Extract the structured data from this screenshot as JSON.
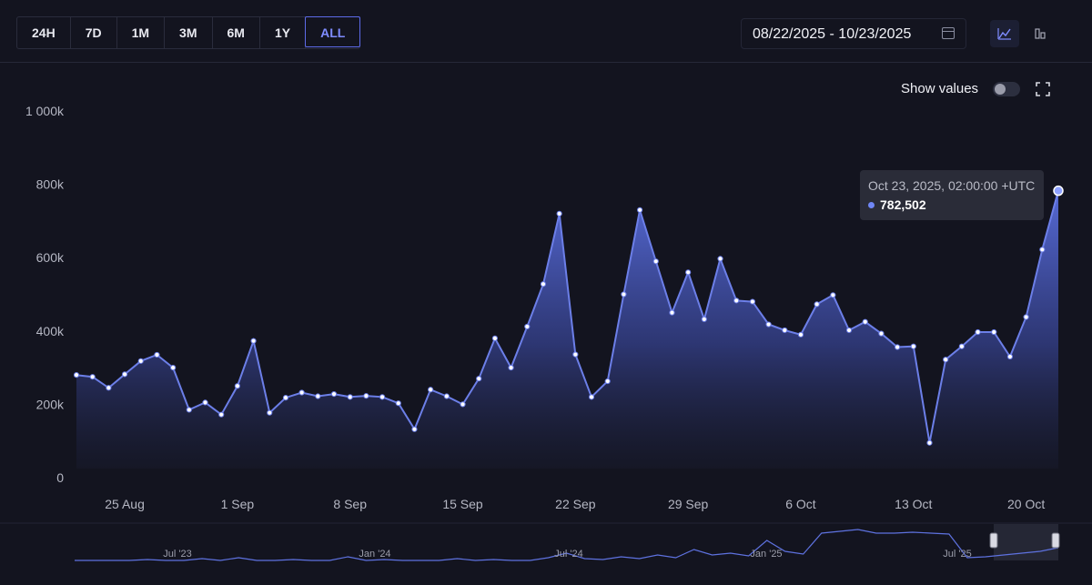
{
  "range_buttons": [
    "24H",
    "7D",
    "1M",
    "3M",
    "6M",
    "1Y",
    "ALL"
  ],
  "active_range": "ALL",
  "date_range": "08/22/2025 - 10/23/2025",
  "show_values_label": "Show values",
  "show_values_on": false,
  "tooltip": {
    "date": "Oct 23, 2025, 02:00:00 +UTC",
    "value": "782,502"
  },
  "colors": {
    "accent": "#6f86f5",
    "line": "#6c7fe8",
    "background": "#13141f"
  },
  "icons": [
    "calendar-icon",
    "line-chart-icon",
    "bar-chart-icon",
    "fullscreen-icon"
  ],
  "chart_data": {
    "type": "area",
    "ylim": [
      0,
      1000000
    ],
    "y_ticks": [
      0,
      200000,
      400000,
      600000,
      800000,
      1000000
    ],
    "y_tick_labels": [
      "0",
      "200k",
      "400k",
      "600k",
      "800k",
      "1 000k"
    ],
    "x_ticks": [
      {
        "day": 3,
        "label": "25 Aug"
      },
      {
        "day": 10,
        "label": "1 Sep"
      },
      {
        "day": 17,
        "label": "8 Sep"
      },
      {
        "day": 24,
        "label": "15 Sep"
      },
      {
        "day": 31,
        "label": "22 Sep"
      },
      {
        "day": 38,
        "label": "29 Sep"
      },
      {
        "day": 45,
        "label": "6 Oct"
      },
      {
        "day": 52,
        "label": "13 Oct"
      },
      {
        "day": 59,
        "label": "20 Oct"
      }
    ],
    "x_start": "2025-08-22",
    "series": [
      {
        "values": [
          280000,
          275000,
          245000,
          282000,
          318000,
          335000,
          300000,
          185000,
          205000,
          172000,
          250000,
          373000,
          177000,
          218000,
          232000,
          222000,
          228000,
          220000,
          223000,
          220000,
          203000,
          132000,
          240000,
          222000,
          200000,
          270000,
          380000,
          300000,
          412000,
          528000,
          720000,
          336000,
          220000,
          263000,
          500000,
          730000,
          590000,
          450000,
          560000,
          432000,
          597000,
          483000,
          480000,
          418000,
          402000,
          390000,
          473000,
          498000,
          402000,
          425000,
          393000,
          356000,
          358000,
          95000,
          322000,
          358000,
          397000,
          397000,
          330000,
          438000,
          622000,
          782502
        ]
      }
    ],
    "navigator": {
      "labels": [
        "Jul '23",
        "Jan '24",
        "Jul '24",
        "Jan '25",
        "Jul '25"
      ]
    }
  }
}
